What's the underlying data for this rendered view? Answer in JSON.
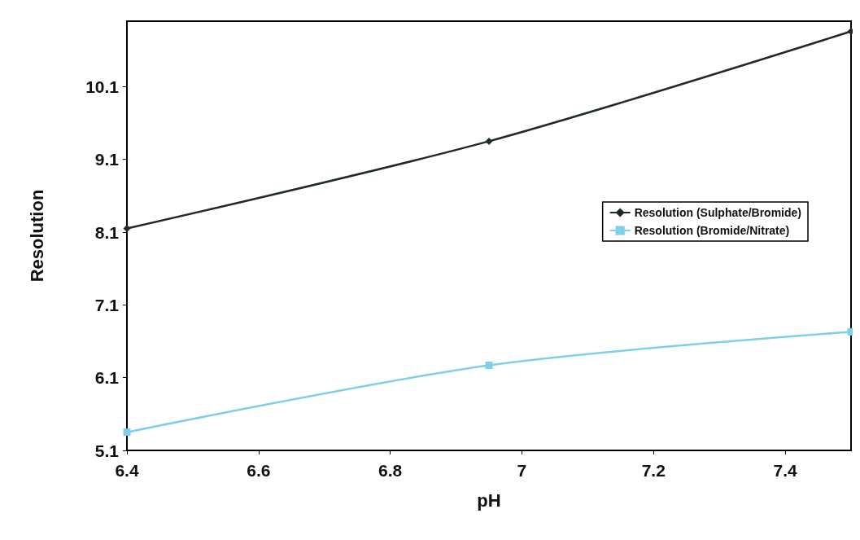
{
  "chart_data": {
    "type": "line",
    "xlabel": "pH",
    "ylabel": "Resolution",
    "x": [
      6.4,
      6.95,
      7.5
    ],
    "series": [
      {
        "name": "Resolution (Sulphate/Bromide)",
        "color": "#1f2a2a",
        "values": [
          8.15,
          9.35,
          10.86
        ],
        "marker": "diamond"
      },
      {
        "name": "Resolution (Bromide/Nitrate)",
        "color": "#7fcfe6",
        "values": [
          5.35,
          6.27,
          6.73
        ],
        "marker": "square"
      }
    ],
    "xlim": [
      6.4,
      7.5
    ],
    "xticks": [
      6.4,
      6.6,
      6.8,
      7,
      7.2,
      7.4
    ],
    "ylim": [
      5.1,
      11.0
    ],
    "yticks": [
      5.1,
      6.1,
      7.1,
      8.1,
      9.1,
      10.1
    ],
    "grid": false,
    "legend": "right",
    "line_style": "solid"
  }
}
